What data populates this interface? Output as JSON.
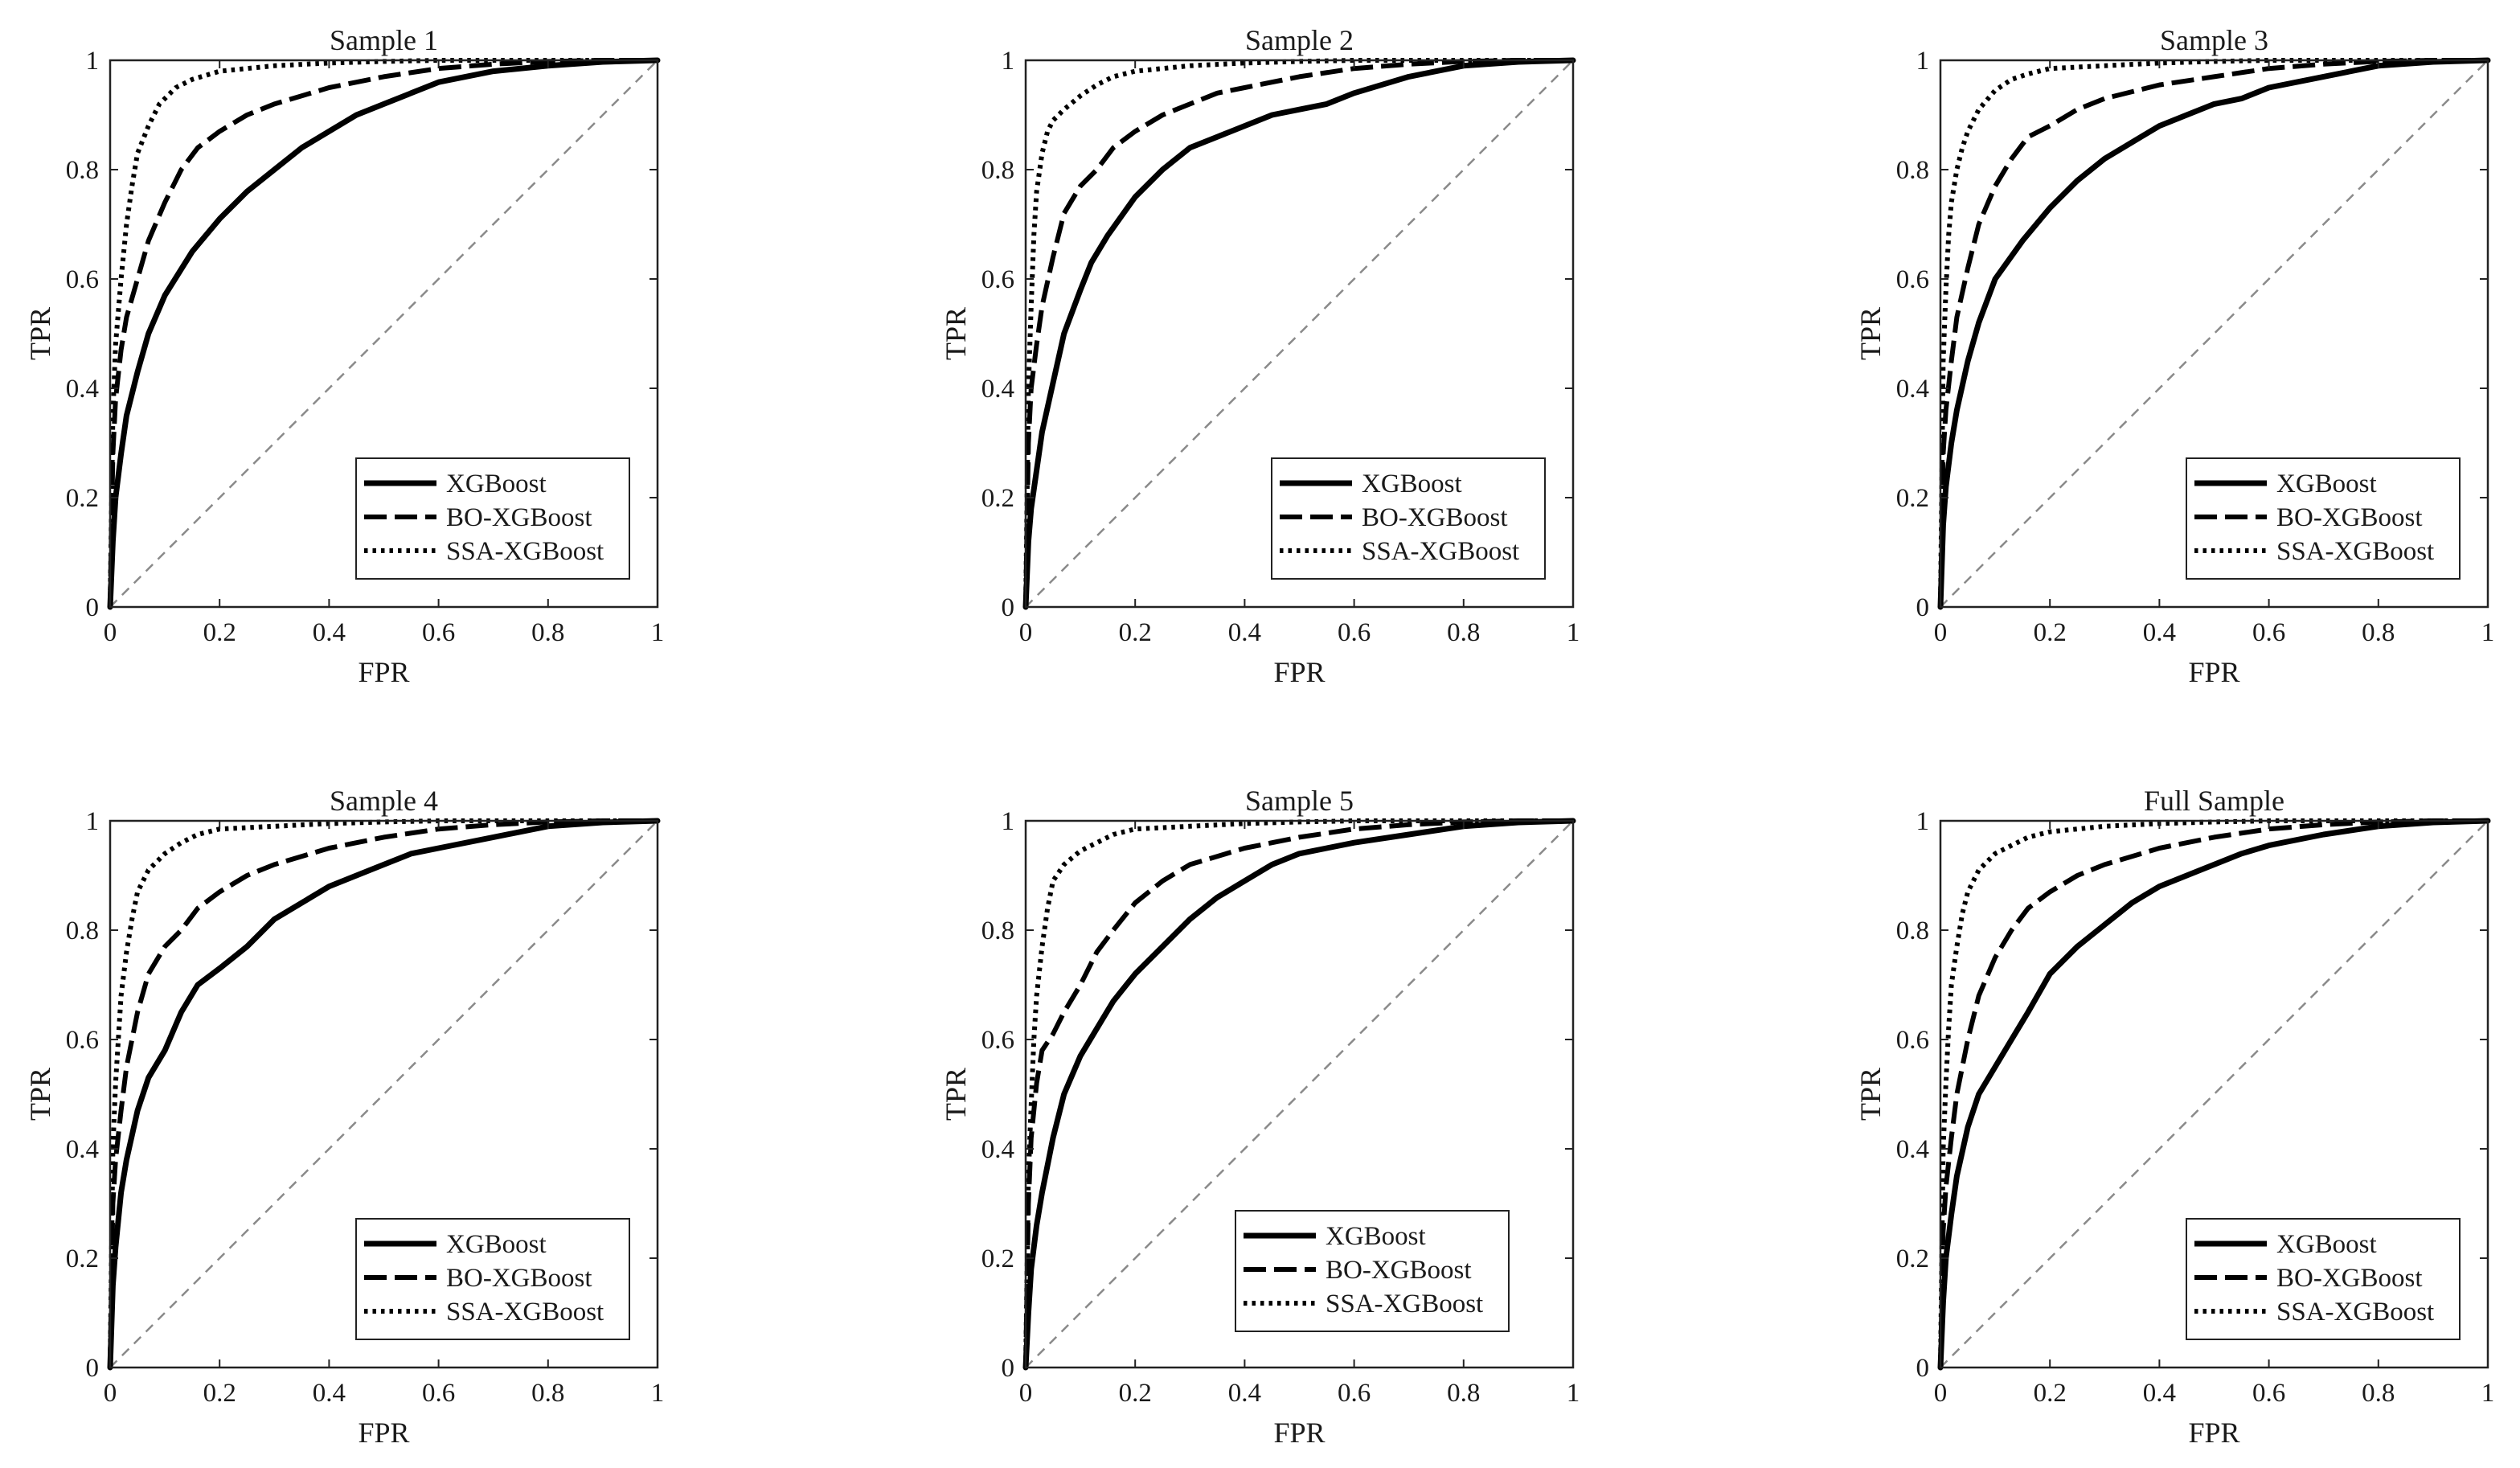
{
  "figure": {
    "legend_entries": [
      "XGBoost",
      "BO-XGBoost",
      "SSA-XGBoost"
    ],
    "x_ticks": [
      "0",
      "0.2",
      "0.4",
      "0.6",
      "0.8",
      "1"
    ],
    "y_ticks": [
      "0",
      "0.2",
      "0.4",
      "0.6",
      "0.8",
      "1"
    ]
  },
  "chart_data": [
    {
      "type": "line",
      "title": "Sample 1",
      "xlabel": "FPR",
      "ylabel": "TPR",
      "xlim": [
        0,
        1
      ],
      "ylim": [
        0,
        1
      ],
      "grid": false,
      "legend": "bottom-right",
      "x_ticks": [
        "0",
        "0.2",
        "0.4",
        "0.6",
        "0.8",
        "1"
      ],
      "y_ticks": [
        "0",
        "0.2",
        "0.4",
        "0.6",
        "0.8",
        "1"
      ],
      "reference_line": {
        "x": [
          0,
          1
        ],
        "y": [
          0,
          1
        ]
      },
      "series": [
        {
          "name": "XGBoost",
          "style": "solid",
          "x": [
            0,
            0.005,
            0.01,
            0.02,
            0.03,
            0.05,
            0.07,
            0.1,
            0.15,
            0.2,
            0.25,
            0.3,
            0.35,
            0.4,
            0.45,
            0.5,
            0.55,
            0.6,
            0.7,
            0.8,
            0.9,
            1.0
          ],
          "y": [
            0,
            0.12,
            0.2,
            0.28,
            0.35,
            0.43,
            0.5,
            0.57,
            0.65,
            0.71,
            0.76,
            0.8,
            0.84,
            0.87,
            0.9,
            0.92,
            0.94,
            0.96,
            0.98,
            0.99,
            0.997,
            1.0
          ]
        },
        {
          "name": "BO-XGBoost",
          "style": "dashed",
          "x": [
            0,
            0.005,
            0.01,
            0.02,
            0.03,
            0.05,
            0.07,
            0.1,
            0.13,
            0.16,
            0.2,
            0.25,
            0.3,
            0.4,
            0.5,
            0.6,
            0.7,
            0.8,
            0.9,
            1.0
          ],
          "y": [
            0,
            0.28,
            0.38,
            0.47,
            0.53,
            0.6,
            0.67,
            0.74,
            0.8,
            0.84,
            0.87,
            0.9,
            0.92,
            0.95,
            0.97,
            0.985,
            0.993,
            0.998,
            1.0,
            1.0
          ]
        },
        {
          "name": "SSA-XGBoost",
          "style": "dotted",
          "x": [
            0,
            0.005,
            0.01,
            0.02,
            0.03,
            0.04,
            0.05,
            0.07,
            0.09,
            0.12,
            0.15,
            0.2,
            0.3,
            0.4,
            0.5,
            0.6,
            0.8,
            1.0
          ],
          "y": [
            0,
            0.35,
            0.48,
            0.6,
            0.7,
            0.77,
            0.83,
            0.88,
            0.92,
            0.95,
            0.965,
            0.98,
            0.99,
            0.995,
            0.998,
            1.0,
            1.0,
            1.0
          ]
        }
      ]
    },
    {
      "type": "line",
      "title": "Sample 2",
      "xlabel": "FPR",
      "ylabel": "TPR",
      "xlim": [
        0,
        1
      ],
      "ylim": [
        0,
        1
      ],
      "grid": false,
      "legend": "bottom-right",
      "x_ticks": [
        "0",
        "0.2",
        "0.4",
        "0.6",
        "0.8",
        "1"
      ],
      "y_ticks": [
        "0",
        "0.2",
        "0.4",
        "0.6",
        "0.8",
        "1"
      ],
      "reference_line": {
        "x": [
          0,
          1
        ],
        "y": [
          0,
          1
        ]
      },
      "series": [
        {
          "name": "XGBoost",
          "style": "solid",
          "x": [
            0,
            0.005,
            0.01,
            0.02,
            0.03,
            0.05,
            0.07,
            0.1,
            0.12,
            0.15,
            0.2,
            0.25,
            0.3,
            0.35,
            0.4,
            0.45,
            0.5,
            0.55,
            0.6,
            0.7,
            0.8,
            0.9,
            1.0
          ],
          "y": [
            0,
            0.12,
            0.18,
            0.25,
            0.32,
            0.41,
            0.5,
            0.58,
            0.63,
            0.68,
            0.75,
            0.8,
            0.84,
            0.86,
            0.88,
            0.9,
            0.91,
            0.92,
            0.94,
            0.97,
            0.99,
            0.997,
            1.0
          ]
        },
        {
          "name": "BO-XGBoost",
          "style": "dashed",
          "x": [
            0,
            0.005,
            0.01,
            0.02,
            0.03,
            0.05,
            0.07,
            0.1,
            0.13,
            0.16,
            0.2,
            0.25,
            0.3,
            0.35,
            0.4,
            0.5,
            0.6,
            0.7,
            0.8,
            0.9,
            1.0
          ],
          "y": [
            0,
            0.3,
            0.4,
            0.48,
            0.55,
            0.64,
            0.72,
            0.77,
            0.8,
            0.84,
            0.87,
            0.9,
            0.92,
            0.94,
            0.95,
            0.97,
            0.985,
            0.993,
            0.998,
            1.0,
            1.0
          ]
        },
        {
          "name": "SSA-XGBoost",
          "style": "dotted",
          "x": [
            0,
            0.005,
            0.01,
            0.015,
            0.02,
            0.03,
            0.04,
            0.05,
            0.07,
            0.1,
            0.13,
            0.16,
            0.2,
            0.3,
            0.4,
            0.5,
            0.6,
            0.8,
            1.0
          ],
          "y": [
            0,
            0.4,
            0.55,
            0.68,
            0.76,
            0.83,
            0.87,
            0.89,
            0.91,
            0.935,
            0.955,
            0.97,
            0.98,
            0.99,
            0.995,
            0.998,
            1.0,
            1.0,
            1.0
          ]
        }
      ]
    },
    {
      "type": "line",
      "title": "Sample 3",
      "xlabel": "FPR",
      "ylabel": "TPR",
      "xlim": [
        0,
        1
      ],
      "ylim": [
        0,
        1
      ],
      "grid": false,
      "legend": "bottom-right",
      "x_ticks": [
        "0",
        "0.2",
        "0.4",
        "0.6",
        "0.8",
        "1"
      ],
      "y_ticks": [
        "0",
        "0.2",
        "0.4",
        "0.6",
        "0.8",
        "1"
      ],
      "reference_line": {
        "x": [
          0,
          1
        ],
        "y": [
          0,
          1
        ]
      },
      "series": [
        {
          "name": "XGBoost",
          "style": "solid",
          "x": [
            0,
            0.005,
            0.01,
            0.02,
            0.03,
            0.05,
            0.07,
            0.1,
            0.15,
            0.2,
            0.25,
            0.3,
            0.35,
            0.4,
            0.45,
            0.5,
            0.55,
            0.6,
            0.7,
            0.8,
            0.9,
            1.0
          ],
          "y": [
            0,
            0.15,
            0.22,
            0.3,
            0.36,
            0.45,
            0.52,
            0.6,
            0.67,
            0.73,
            0.78,
            0.82,
            0.85,
            0.88,
            0.9,
            0.92,
            0.93,
            0.95,
            0.97,
            0.99,
            0.997,
            1.0
          ]
        },
        {
          "name": "BO-XGBoost",
          "style": "dashed",
          "x": [
            0,
            0.005,
            0.01,
            0.02,
            0.03,
            0.05,
            0.07,
            0.1,
            0.13,
            0.16,
            0.2,
            0.25,
            0.3,
            0.4,
            0.5,
            0.6,
            0.7,
            0.8,
            0.9,
            1.0
          ],
          "y": [
            0,
            0.28,
            0.36,
            0.45,
            0.53,
            0.62,
            0.7,
            0.77,
            0.82,
            0.86,
            0.88,
            0.91,
            0.93,
            0.955,
            0.97,
            0.985,
            0.993,
            0.998,
            1.0,
            1.0
          ]
        },
        {
          "name": "SSA-XGBoost",
          "style": "dotted",
          "x": [
            0,
            0.005,
            0.01,
            0.015,
            0.02,
            0.03,
            0.04,
            0.05,
            0.07,
            0.1,
            0.13,
            0.16,
            0.2,
            0.3,
            0.4,
            0.5,
            0.6,
            0.8,
            1.0
          ],
          "y": [
            0,
            0.45,
            0.58,
            0.68,
            0.74,
            0.8,
            0.84,
            0.87,
            0.91,
            0.945,
            0.965,
            0.975,
            0.985,
            0.99,
            0.995,
            0.998,
            1.0,
            1.0,
            1.0
          ]
        }
      ]
    },
    {
      "type": "line",
      "title": "Sample 4",
      "xlabel": "FPR",
      "ylabel": "TPR",
      "xlim": [
        0,
        1
      ],
      "ylim": [
        0,
        1
      ],
      "grid": false,
      "legend": "bottom-right",
      "x_ticks": [
        "0",
        "0.2",
        "0.4",
        "0.6",
        "0.8",
        "1"
      ],
      "y_ticks": [
        "0",
        "0.2",
        "0.4",
        "0.6",
        "0.8",
        "1"
      ],
      "reference_line": {
        "x": [
          0,
          1
        ],
        "y": [
          0,
          1
        ]
      },
      "series": [
        {
          "name": "XGBoost",
          "style": "solid",
          "x": [
            0,
            0.005,
            0.01,
            0.02,
            0.03,
            0.05,
            0.07,
            0.1,
            0.13,
            0.16,
            0.2,
            0.25,
            0.3,
            0.35,
            0.4,
            0.45,
            0.5,
            0.55,
            0.6,
            0.7,
            0.8,
            0.9,
            1.0
          ],
          "y": [
            0,
            0.15,
            0.22,
            0.32,
            0.38,
            0.47,
            0.53,
            0.58,
            0.65,
            0.7,
            0.73,
            0.77,
            0.82,
            0.85,
            0.88,
            0.9,
            0.92,
            0.94,
            0.95,
            0.97,
            0.99,
            0.997,
            1.0
          ]
        },
        {
          "name": "BO-XGBoost",
          "style": "dashed",
          "x": [
            0,
            0.005,
            0.01,
            0.02,
            0.03,
            0.05,
            0.07,
            0.1,
            0.13,
            0.16,
            0.2,
            0.25,
            0.3,
            0.4,
            0.5,
            0.6,
            0.7,
            0.8,
            0.9,
            1.0
          ],
          "y": [
            0,
            0.3,
            0.38,
            0.47,
            0.55,
            0.65,
            0.72,
            0.77,
            0.8,
            0.84,
            0.87,
            0.9,
            0.92,
            0.95,
            0.97,
            0.985,
            0.993,
            0.998,
            1.0,
            1.0
          ]
        },
        {
          "name": "SSA-XGBoost",
          "style": "dotted",
          "x": [
            0,
            0.005,
            0.01,
            0.015,
            0.02,
            0.03,
            0.04,
            0.05,
            0.07,
            0.1,
            0.13,
            0.16,
            0.2,
            0.3,
            0.4,
            0.5,
            0.6,
            0.8,
            1.0
          ],
          "y": [
            0,
            0.4,
            0.52,
            0.6,
            0.68,
            0.76,
            0.82,
            0.87,
            0.91,
            0.94,
            0.96,
            0.975,
            0.985,
            0.99,
            0.995,
            0.998,
            1.0,
            1.0,
            1.0
          ]
        }
      ]
    },
    {
      "type": "line",
      "title": "Sample 5",
      "xlabel": "FPR",
      "ylabel": "TPR",
      "xlim": [
        0,
        1
      ],
      "ylim": [
        0,
        1
      ],
      "grid": false,
      "legend": "bottom-right",
      "x_ticks": [
        "0",
        "0.2",
        "0.4",
        "0.6",
        "0.8",
        "1"
      ],
      "y_ticks": [
        "0",
        "0.2",
        "0.4",
        "0.6",
        "0.8",
        "1"
      ],
      "reference_line": {
        "x": [
          0,
          1
        ],
        "y": [
          0,
          1
        ]
      },
      "series": [
        {
          "name": "XGBoost",
          "style": "solid",
          "x": [
            0,
            0.005,
            0.01,
            0.02,
            0.03,
            0.05,
            0.07,
            0.1,
            0.13,
            0.16,
            0.2,
            0.25,
            0.3,
            0.35,
            0.4,
            0.45,
            0.5,
            0.55,
            0.6,
            0.7,
            0.8,
            0.9,
            1.0
          ],
          "y": [
            0,
            0.1,
            0.18,
            0.26,
            0.32,
            0.42,
            0.5,
            0.57,
            0.62,
            0.67,
            0.72,
            0.77,
            0.82,
            0.86,
            0.89,
            0.92,
            0.94,
            0.95,
            0.96,
            0.975,
            0.99,
            0.997,
            1.0
          ]
        },
        {
          "name": "BO-XGBoost",
          "style": "dashed",
          "x": [
            0,
            0.005,
            0.01,
            0.02,
            0.03,
            0.05,
            0.07,
            0.1,
            0.13,
            0.16,
            0.2,
            0.25,
            0.3,
            0.4,
            0.5,
            0.6,
            0.7,
            0.8,
            0.9,
            1.0
          ],
          "y": [
            0,
            0.3,
            0.42,
            0.52,
            0.58,
            0.61,
            0.65,
            0.7,
            0.76,
            0.8,
            0.85,
            0.89,
            0.92,
            0.95,
            0.97,
            0.985,
            0.993,
            0.998,
            1.0,
            1.0
          ]
        },
        {
          "name": "SSA-XGBoost",
          "style": "dotted",
          "x": [
            0,
            0.005,
            0.01,
            0.015,
            0.02,
            0.03,
            0.04,
            0.05,
            0.07,
            0.1,
            0.13,
            0.16,
            0.2,
            0.3,
            0.4,
            0.5,
            0.6,
            0.8,
            1.0
          ],
          "y": [
            0,
            0.35,
            0.48,
            0.6,
            0.68,
            0.77,
            0.84,
            0.89,
            0.92,
            0.945,
            0.96,
            0.975,
            0.985,
            0.99,
            0.995,
            0.998,
            1.0,
            1.0,
            1.0
          ]
        }
      ]
    },
    {
      "type": "line",
      "title": "Full Sample",
      "xlabel": "FPR",
      "ylabel": "TPR",
      "xlim": [
        0,
        1
      ],
      "ylim": [
        0,
        1
      ],
      "grid": false,
      "legend": "bottom-right",
      "x_ticks": [
        "0",
        "0.2",
        "0.4",
        "0.6",
        "0.8",
        "1"
      ],
      "y_ticks": [
        "0",
        "0.2",
        "0.4",
        "0.6",
        "0.8",
        "1"
      ],
      "reference_line": {
        "x": [
          0,
          1
        ],
        "y": [
          0,
          1
        ]
      },
      "series": [
        {
          "name": "XGBoost",
          "style": "solid",
          "x": [
            0,
            0.005,
            0.01,
            0.02,
            0.03,
            0.05,
            0.07,
            0.1,
            0.13,
            0.16,
            0.2,
            0.25,
            0.3,
            0.35,
            0.4,
            0.45,
            0.5,
            0.55,
            0.6,
            0.7,
            0.8,
            0.9,
            1.0
          ],
          "y": [
            0,
            0.12,
            0.2,
            0.28,
            0.35,
            0.44,
            0.5,
            0.55,
            0.6,
            0.65,
            0.72,
            0.77,
            0.81,
            0.85,
            0.88,
            0.9,
            0.92,
            0.94,
            0.955,
            0.975,
            0.99,
            0.997,
            1.0
          ]
        },
        {
          "name": "BO-XGBoost",
          "style": "dashed",
          "x": [
            0,
            0.005,
            0.01,
            0.02,
            0.03,
            0.05,
            0.07,
            0.1,
            0.13,
            0.16,
            0.2,
            0.25,
            0.3,
            0.4,
            0.5,
            0.6,
            0.7,
            0.8,
            0.9,
            1.0
          ],
          "y": [
            0,
            0.25,
            0.33,
            0.42,
            0.5,
            0.6,
            0.68,
            0.75,
            0.8,
            0.84,
            0.87,
            0.9,
            0.92,
            0.95,
            0.97,
            0.985,
            0.993,
            0.998,
            1.0,
            1.0
          ]
        },
        {
          "name": "SSA-XGBoost",
          "style": "dotted",
          "x": [
            0,
            0.005,
            0.01,
            0.015,
            0.02,
            0.03,
            0.04,
            0.05,
            0.07,
            0.1,
            0.13,
            0.16,
            0.2,
            0.3,
            0.4,
            0.5,
            0.6,
            0.8,
            1.0
          ],
          "y": [
            0,
            0.4,
            0.52,
            0.62,
            0.7,
            0.77,
            0.83,
            0.87,
            0.91,
            0.94,
            0.955,
            0.97,
            0.98,
            0.99,
            0.995,
            0.998,
            1.0,
            1.0,
            1.0
          ]
        }
      ]
    }
  ]
}
